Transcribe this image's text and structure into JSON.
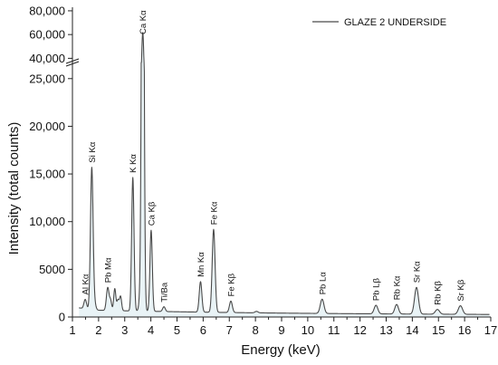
{
  "chart_data": {
    "type": "line",
    "xlabel": "Energy (keV)",
    "ylabel": "Intensity (total counts)",
    "xlim": [
      1,
      17
    ],
    "xticks": [
      "1",
      "2",
      "3",
      "4",
      "5",
      "6",
      "7",
      "8",
      "9",
      "10",
      "11",
      "12",
      "13",
      "14",
      "15",
      "16",
      "17"
    ],
    "y_axis_break": {
      "lower_range": [
        0,
        26500
      ],
      "upper_range": [
        38000,
        83000
      ],
      "lower_ticks": [
        "0",
        "5000",
        "10,000",
        "15,000",
        "20,000",
        "25,000"
      ],
      "lower_tick_values": [
        0,
        5000,
        10000,
        15000,
        20000,
        25000
      ],
      "upper_ticks": [
        "40,000",
        "60,000",
        "80,000"
      ],
      "upper_tick_values": [
        40000,
        60000,
        80000
      ]
    },
    "legend": {
      "placement": "top-right",
      "entries": [
        "GLAZE 2 UNDERSIDE"
      ]
    },
    "series": [
      {
        "name": "GLAZE 2 UNDERSIDE",
        "color": "#4a4a4a",
        "fill": "#e9f3f6",
        "baseline": 600,
        "peaks": [
          {
            "x": 1.2,
            "y": 200,
            "w": 0.25
          },
          {
            "x": 1.49,
            "y": 1000,
            "w": 0.05
          },
          {
            "x": 1.74,
            "y": 14900,
            "w": 0.05
          },
          {
            "x": 1.85,
            "y": 600,
            "w": 0.05
          },
          {
            "x": 2.35,
            "y": 2400,
            "w": 0.05
          },
          {
            "x": 2.46,
            "y": 1000,
            "w": 0.04
          },
          {
            "x": 2.62,
            "y": 2300,
            "w": 0.04
          },
          {
            "x": 2.74,
            "y": 1100,
            "w": 0.04
          },
          {
            "x": 2.84,
            "y": 1500,
            "w": 0.04
          },
          {
            "x": 3.31,
            "y": 14000,
            "w": 0.045
          },
          {
            "x": 3.59,
            "y": 1400,
            "w": 0.045
          },
          {
            "x": 3.69,
            "y": 61000,
            "w": 0.045
          },
          {
            "x": 4.01,
            "y": 8500,
            "w": 0.045
          },
          {
            "x": 4.5,
            "y": 500,
            "w": 0.05
          },
          {
            "x": 5.9,
            "y": 3200,
            "w": 0.05
          },
          {
            "x": 6.4,
            "y": 8700,
            "w": 0.055
          },
          {
            "x": 7.06,
            "y": 1200,
            "w": 0.055
          },
          {
            "x": 8.04,
            "y": 150,
            "w": 0.06
          },
          {
            "x": 10.55,
            "y": 1500,
            "w": 0.07
          },
          {
            "x": 12.61,
            "y": 900,
            "w": 0.07
          },
          {
            "x": 13.4,
            "y": 1000,
            "w": 0.07
          },
          {
            "x": 14.16,
            "y": 2800,
            "w": 0.075
          },
          {
            "x": 14.96,
            "y": 500,
            "w": 0.08
          },
          {
            "x": 15.84,
            "y": 900,
            "w": 0.08
          }
        ]
      }
    ],
    "annotations": [
      {
        "text": "Al Kα",
        "x": 1.49
      },
      {
        "text": "Si Kα",
        "x": 1.74
      },
      {
        "text": "Pb Mα",
        "x": 2.35
      },
      {
        "text": "K Kα",
        "x": 3.31
      },
      {
        "text": "Ca Kα",
        "x": 3.69
      },
      {
        "text": "Ca Kβ",
        "x": 4.01
      },
      {
        "text": "Ti/Ba",
        "x": 4.5
      },
      {
        "text": "Mn Kα",
        "x": 5.9
      },
      {
        "text": "Fe Kα",
        "x": 6.4
      },
      {
        "text": "Fe Kβ",
        "x": 7.06
      },
      {
        "text": "Pb Lα",
        "x": 10.55
      },
      {
        "text": "Pb Lβ",
        "x": 12.61
      },
      {
        "text": "Rb Kα",
        "x": 13.4
      },
      {
        "text": "Sr Kα",
        "x": 14.16
      },
      {
        "text": "Rb Kβ",
        "x": 14.96
      },
      {
        "text": "Sr Kβ",
        "x": 15.84
      }
    ]
  }
}
